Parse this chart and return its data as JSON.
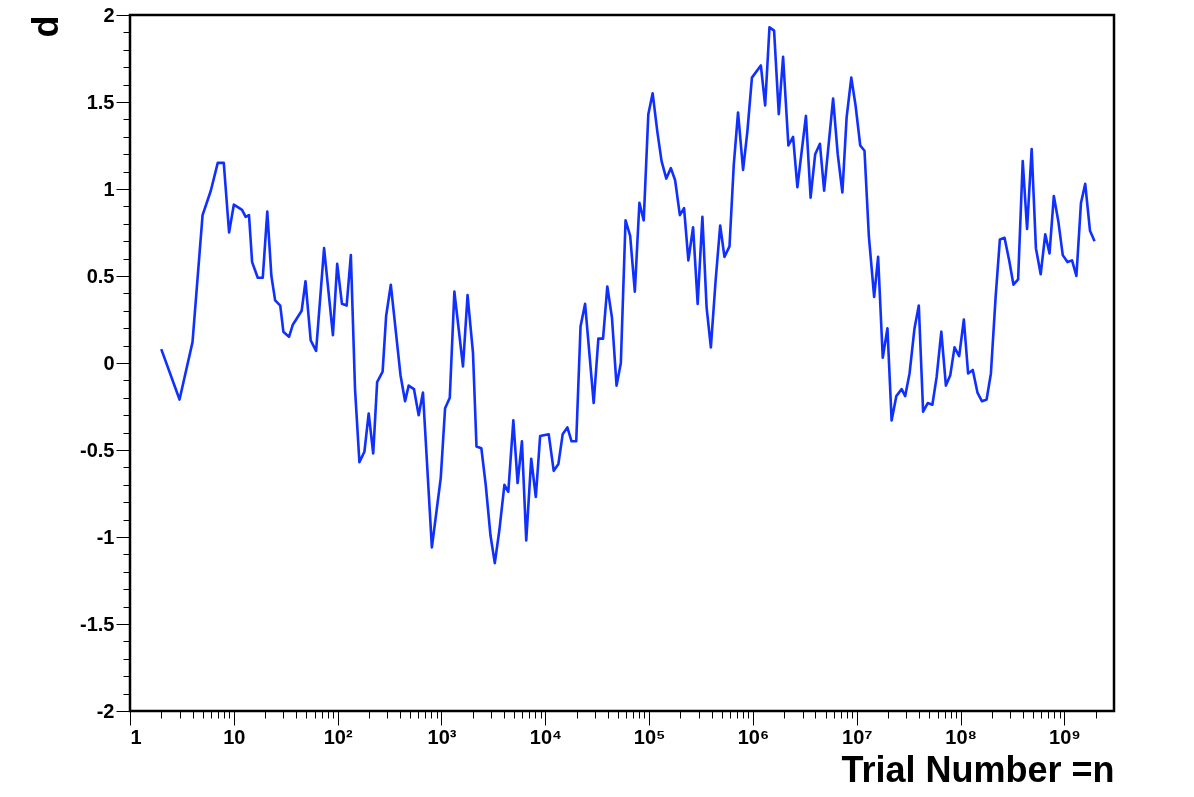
{
  "chart_data": {
    "type": "line",
    "xlabel": "Trial Number =n",
    "ylabel": "d",
    "log": "x",
    "grid": false,
    "line_style": "solid",
    "xlim": [
      1,
      3000000000
    ],
    "ylim": [
      -2,
      2
    ],
    "xticks": [
      {
        "value": 1,
        "label": "1"
      },
      {
        "value": 2,
        "label": null
      },
      {
        "value": 3,
        "label": null
      },
      {
        "value": 4,
        "label": null
      },
      {
        "value": 5,
        "label": null
      },
      {
        "value": 6,
        "label": null
      },
      {
        "value": 7,
        "label": null
      },
      {
        "value": 8,
        "label": null
      },
      {
        "value": 9,
        "label": null
      },
      {
        "value": 10,
        "label": "10"
      },
      {
        "value": 20,
        "label": null
      },
      {
        "value": 30,
        "label": null
      },
      {
        "value": 40,
        "label": null
      },
      {
        "value": 50,
        "label": null
      },
      {
        "value": 60,
        "label": null
      },
      {
        "value": 70,
        "label": null
      },
      {
        "value": 80,
        "label": null
      },
      {
        "value": 90,
        "label": null
      },
      {
        "value": 100,
        "label": "10²"
      },
      {
        "value": 200,
        "label": null
      },
      {
        "value": 300,
        "label": null
      },
      {
        "value": 400,
        "label": null
      },
      {
        "value": 500,
        "label": null
      },
      {
        "value": 600,
        "label": null
      },
      {
        "value": 700,
        "label": null
      },
      {
        "value": 800,
        "label": null
      },
      {
        "value": 900,
        "label": null
      },
      {
        "value": 1000,
        "label": "10³"
      },
      {
        "value": 2000,
        "label": null
      },
      {
        "value": 3000,
        "label": null
      },
      {
        "value": 4000,
        "label": null
      },
      {
        "value": 5000,
        "label": null
      },
      {
        "value": 6000,
        "label": null
      },
      {
        "value": 7000,
        "label": null
      },
      {
        "value": 8000,
        "label": null
      },
      {
        "value": 9000,
        "label": null
      },
      {
        "value": 10000,
        "label": "10⁴"
      },
      {
        "value": 20000,
        "label": null
      },
      {
        "value": 30000,
        "label": null
      },
      {
        "value": 40000,
        "label": null
      },
      {
        "value": 50000,
        "label": null
      },
      {
        "value": 60000,
        "label": null
      },
      {
        "value": 70000,
        "label": null
      },
      {
        "value": 80000,
        "label": null
      },
      {
        "value": 90000,
        "label": null
      },
      {
        "value": 100000,
        "label": "10⁵"
      },
      {
        "value": 200000,
        "label": null
      },
      {
        "value": 300000,
        "label": null
      },
      {
        "value": 400000,
        "label": null
      },
      {
        "value": 500000,
        "label": null
      },
      {
        "value": 600000,
        "label": null
      },
      {
        "value": 700000,
        "label": null
      },
      {
        "value": 800000,
        "label": null
      },
      {
        "value": 900000,
        "label": null
      },
      {
        "value": 1000000,
        "label": "10⁶"
      },
      {
        "value": 2000000,
        "label": null
      },
      {
        "value": 3000000,
        "label": null
      },
      {
        "value": 4000000,
        "label": null
      },
      {
        "value": 5000000,
        "label": null
      },
      {
        "value": 6000000,
        "label": null
      },
      {
        "value": 7000000,
        "label": null
      },
      {
        "value": 8000000,
        "label": null
      },
      {
        "value": 9000000,
        "label": null
      },
      {
        "value": 10000000,
        "label": "10⁷"
      },
      {
        "value": 20000000,
        "label": null
      },
      {
        "value": 30000000,
        "label": null
      },
      {
        "value": 40000000,
        "label": null
      },
      {
        "value": 50000000,
        "label": null
      },
      {
        "value": 60000000,
        "label": null
      },
      {
        "value": 70000000,
        "label": null
      },
      {
        "value": 80000000,
        "label": null
      },
      {
        "value": 90000000,
        "label": null
      },
      {
        "value": 100000000,
        "label": "10⁸"
      },
      {
        "value": 200000000,
        "label": null
      },
      {
        "value": 300000000,
        "label": null
      },
      {
        "value": 400000000,
        "label": null
      },
      {
        "value": 500000000,
        "label": null
      },
      {
        "value": 600000000,
        "label": null
      },
      {
        "value": 700000000,
        "label": null
      },
      {
        "value": 800000000,
        "label": null
      },
      {
        "value": 900000000,
        "label": null
      },
      {
        "value": 1000000000,
        "label": "10⁹"
      },
      {
        "value": 2000000000,
        "label": null
      }
    ],
    "yticks": [
      -2,
      {
        "value": -1.9,
        "label": null
      },
      {
        "value": -1.8,
        "label": null
      },
      {
        "value": -1.7,
        "label": null
      },
      {
        "value": -1.6,
        "label": null
      },
      -1.5,
      {
        "value": -1.4,
        "label": null
      },
      {
        "value": -1.3,
        "label": null
      },
      {
        "value": -1.2,
        "label": null
      },
      {
        "value": -1.1,
        "label": null
      },
      -1,
      {
        "value": -0.9,
        "label": null
      },
      {
        "value": -0.8,
        "label": null
      },
      {
        "value": -0.7,
        "label": null
      },
      {
        "value": -0.6,
        "label": null
      },
      -0.5,
      {
        "value": -0.4,
        "label": null
      },
      {
        "value": -0.3,
        "label": null
      },
      {
        "value": -0.2,
        "label": null
      },
      {
        "value": -0.1,
        "label": null
      },
      0,
      {
        "value": 0.1,
        "label": null
      },
      {
        "value": 0.2,
        "label": null
      },
      {
        "value": 0.3,
        "label": null
      },
      {
        "value": 0.4,
        "label": null
      },
      0.5,
      {
        "value": 0.6,
        "label": null
      },
      {
        "value": 0.7,
        "label": null
      },
      {
        "value": 0.8,
        "label": null
      },
      {
        "value": 0.9,
        "label": null
      },
      1,
      {
        "value": 1.1,
        "label": null
      },
      {
        "value": 1.2,
        "label": null
      },
      {
        "value": 1.3,
        "label": null
      },
      {
        "value": 1.4,
        "label": null
      },
      1.5,
      {
        "value": 1.6,
        "label": null
      },
      {
        "value": 1.7,
        "label": null
      },
      {
        "value": 1.8,
        "label": null
      },
      {
        "value": 1.9,
        "label": null
      },
      2
    ],
    "x": [
      2,
      3,
      4,
      5,
      6,
      7,
      8,
      9,
      10,
      12,
      13,
      14,
      15,
      17,
      19,
      21,
      23,
      25,
      28,
      30,
      34,
      37,
      45,
      49,
      55,
      62,
      74,
      90,
      99,
      110,
      122,
      134,
      147,
      162,
      181,
      199,
      220,
      240,
      271,
      293,
      325,
      403,
      446,
      483,
      543,
      603,
      663,
      808,
      984,
      1083,
      1202,
      1331,
      1611,
      1783,
      2010,
      2173,
      2421,
      2667,
      2963,
      3262,
      3611,
      4036,
      4401,
      4920,
      5410,
      5953,
      6550,
      7316,
      8102,
      8913,
      10790,
      12050,
      13370,
      14690,
      16300,
      17900,
      19850,
      21840,
      24160,
      29240,
      32430,
      35970,
      39550,
      43850,
      48550,
      53380,
      59260,
      65660,
      72800,
      80580,
      88650,
      98200,
      108100,
      119900,
      131700,
      146300,
      161900,
      177900,
      197600,
      216900,
      238600,
      265000,
      293300,
      325700,
      357500,
      393000,
      436200,
      483200,
      531200,
      594000,
      653400,
      718000,
      803000,
      883000,
      977000,
      1191000,
      1310000,
      1442000,
      1597000,
      1773000,
      1950000,
      2193000,
      2434000,
      2678000,
      3236000,
      3590000,
      3974000,
      4413000,
      4845000,
      5913000,
      6550000,
      7264000,
      7975000,
      8850000,
      9730000,
      10790000,
      11860000,
      13060000,
      14690000,
      16040000,
      17780000,
      19730000,
      21640000,
      24040000,
      27040000,
      29250000,
      32210000,
      35970000,
      39550000,
      43530000,
      48220000,
      53450000,
      58740000,
      65160000,
      72140000,
      79430000,
      87340000,
      96820000,
      107400000,
      118000000,
      130900000,
      145200000,
      160700000,
      177900000,
      195700000,
      217300000,
      238800000,
      264800000,
      293300000,
      322800000,
      357800000,
      396300000,
      436500000,
      483100000,
      531000000,
      590200000,
      653100000,
      718000000,
      790000000,
      875000000,
      963000000,
      1069000000,
      1183000000,
      1303000000,
      1442000000,
      1585000000,
      1762000000,
      1950000000
    ],
    "series": [
      {
        "color": "#1030ff",
        "values": [
          0.08,
          -0.21,
          0.12,
          0.85,
          0.99,
          1.15,
          1.15,
          0.75,
          0.91,
          0.88,
          0.84,
          0.85,
          0.58,
          0.49,
          0.49,
          0.87,
          0.5,
          0.36,
          0.33,
          0.18,
          0.15,
          0.22,
          0.3,
          0.47,
          0.13,
          0.07,
          0.66,
          0.16,
          0.57,
          0.34,
          0.33,
          0.62,
          -0.15,
          -0.57,
          -0.51,
          -0.29,
          -0.52,
          -0.11,
          -0.05,
          0.27,
          0.45,
          -0.07,
          -0.22,
          -0.13,
          -0.15,
          -0.3,
          -0.17,
          -1.06,
          -0.66,
          -0.26,
          -0.2,
          0.41,
          -0.02,
          0.39,
          0.06,
          -0.48,
          -0.49,
          -0.7,
          -0.99,
          -1.15,
          -0.96,
          -0.7,
          -0.74,
          -0.33,
          -0.69,
          -0.45,
          -1.02,
          -0.55,
          -0.77,
          -0.42,
          -0.41,
          -0.62,
          -0.58,
          -0.41,
          -0.37,
          -0.45,
          -0.45,
          0.21,
          0.34,
          -0.23,
          0.14,
          0.14,
          0.44,
          0.26,
          -0.13,
          0.0,
          0.82,
          0.73,
          0.41,
          0.92,
          0.82,
          1.43,
          1.55,
          1.33,
          1.16,
          1.06,
          1.12,
          1.05,
          0.85,
          0.89,
          0.59,
          0.78,
          0.34,
          0.84,
          0.32,
          0.09,
          0.47,
          0.79,
          0.61,
          0.67,
          1.14,
          1.44,
          1.11,
          1.33,
          1.64,
          1.71,
          1.48,
          1.93,
          1.91,
          1.43,
          1.76,
          1.25,
          1.3,
          1.01,
          1.42,
          0.95,
          1.2,
          1.26,
          0.99,
          1.52,
          1.2,
          0.98,
          1.41,
          1.64,
          1.48,
          1.25,
          1.22,
          0.73,
          0.38,
          0.61,
          0.03,
          0.2,
          -0.33,
          -0.19,
          -0.15,
          -0.19,
          -0.06,
          0.2,
          0.33,
          -0.28,
          -0.23,
          -0.24,
          -0.08,
          0.18,
          -0.13,
          -0.07,
          0.09,
          0.04,
          0.25,
          -0.06,
          -0.04,
          -0.17,
          -0.22,
          -0.21,
          -0.06,
          0.38,
          0.71,
          0.72,
          0.59,
          0.45,
          0.48,
          1.16,
          0.77,
          1.23,
          0.66,
          0.51,
          0.74,
          0.63,
          0.96,
          0.81,
          0.62,
          0.58,
          0.59,
          0.5,
          0.92,
          1.03,
          0.76,
          0.7
        ]
      }
    ]
  }
}
